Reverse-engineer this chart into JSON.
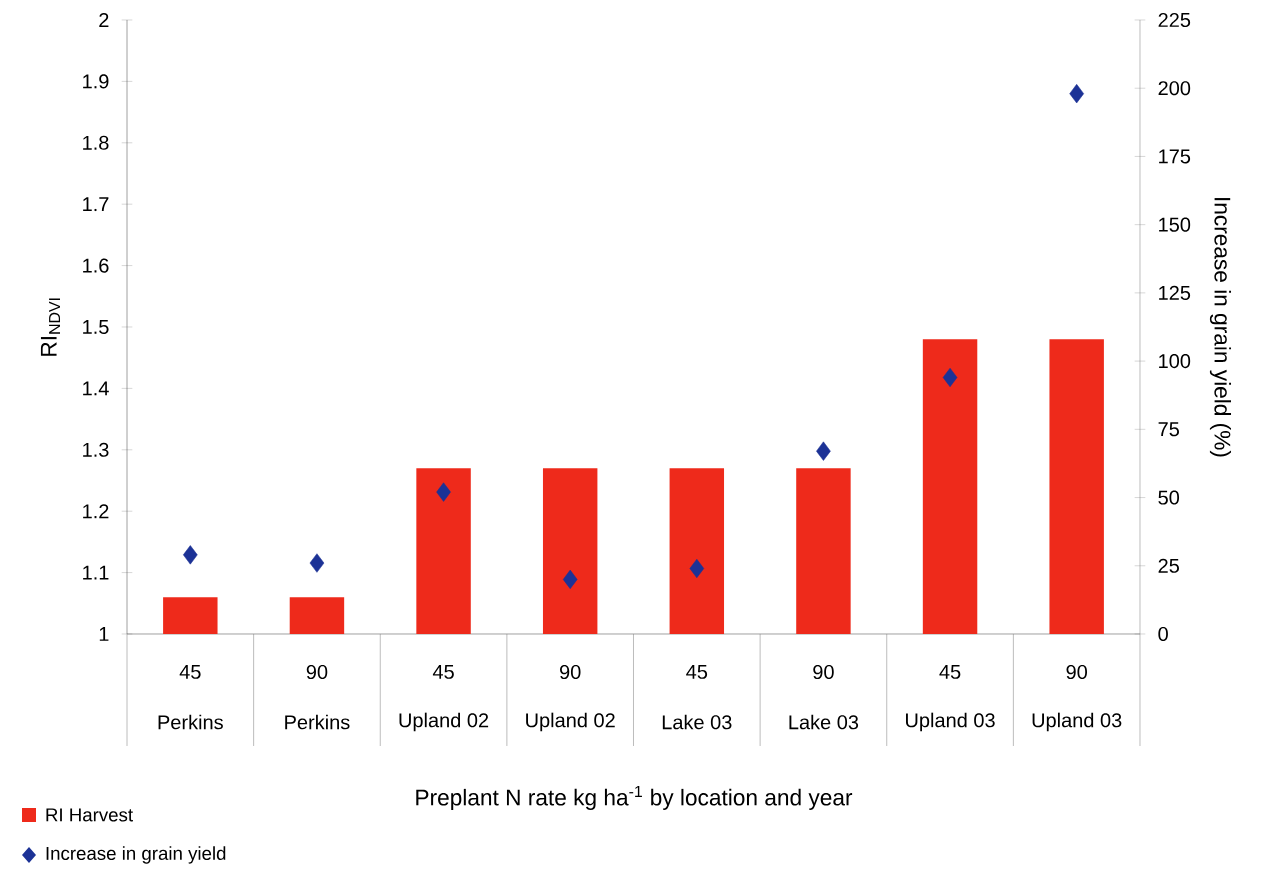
{
  "chart_data": {
    "type": "bar",
    "xlabel": "Preplant N rate kg ha$^{-1}$ by location and year",
    "ylabel": "RI$_{NDVI}$",
    "y2label": "Increase in grain yield (%)",
    "categories": [
      "45",
      "90",
      "45",
      "90",
      "45",
      "90",
      "45",
      "90"
    ],
    "annotations": [
      "Perkins",
      "Perkins",
      "Upland 02",
      "Upland 02",
      "Lake 03",
      "Lake 03",
      "Upland 03",
      "Upland 03"
    ],
    "series": [
      {
        "name": "RI Harvest",
        "color": "#ee2a1b",
        "values": [
          1.06,
          1.06,
          1.27,
          1.27,
          1.27,
          1.27,
          1.48,
          1.48
        ]
      },
      {
        "name": "Increase in grain yield",
        "type": "scatter",
        "axis": "y2",
        "marker": "diamond",
        "color": "#1c3296",
        "values": [
          29,
          26,
          52,
          20,
          24,
          67,
          94,
          198
        ]
      }
    ],
    "ylim": [
      1,
      2
    ],
    "yticks": [
      1,
      1.1,
      1.2,
      1.3,
      1.4,
      1.5,
      1.6,
      1.7,
      1.8,
      1.9,
      2
    ],
    "y2lim": [
      0,
      225
    ],
    "y2ticks": [
      0,
      25,
      50,
      75,
      100,
      125,
      150,
      175,
      200,
      225
    ],
    "legend": "bottom left"
  }
}
